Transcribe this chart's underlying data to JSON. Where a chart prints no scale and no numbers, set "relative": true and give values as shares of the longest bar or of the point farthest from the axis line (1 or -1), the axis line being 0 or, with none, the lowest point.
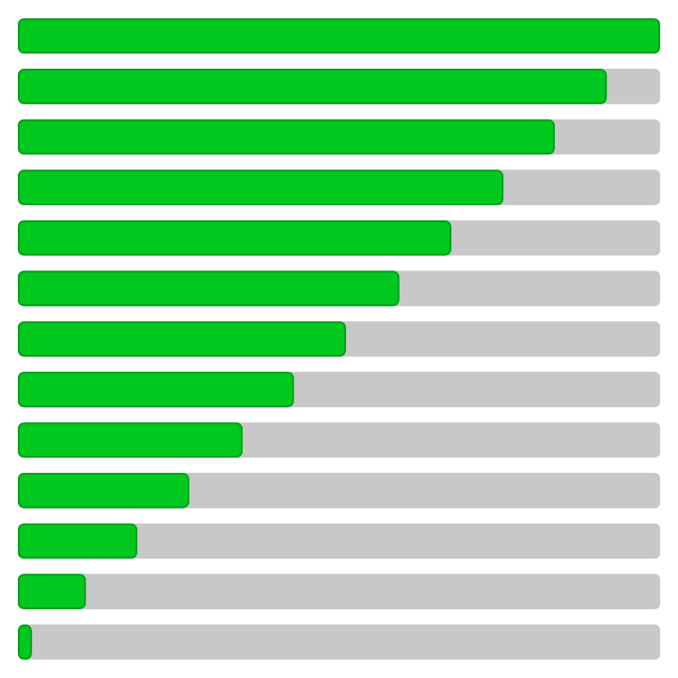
{
  "chart_data": {
    "type": "bar",
    "orientation": "horizontal",
    "relative": true,
    "categories": [
      null,
      null,
      null,
      null,
      null,
      null,
      null,
      null,
      null,
      null,
      null,
      null,
      null
    ],
    "series": [
      {
        "color": "#00c81e",
        "values": [
          1,
          0.917,
          0.836,
          0.756,
          0.675,
          0.594,
          0.511,
          0.43,
          0.35,
          0.267,
          0.186,
          0.106,
          0.022
        ]
      }
    ]
  }
}
